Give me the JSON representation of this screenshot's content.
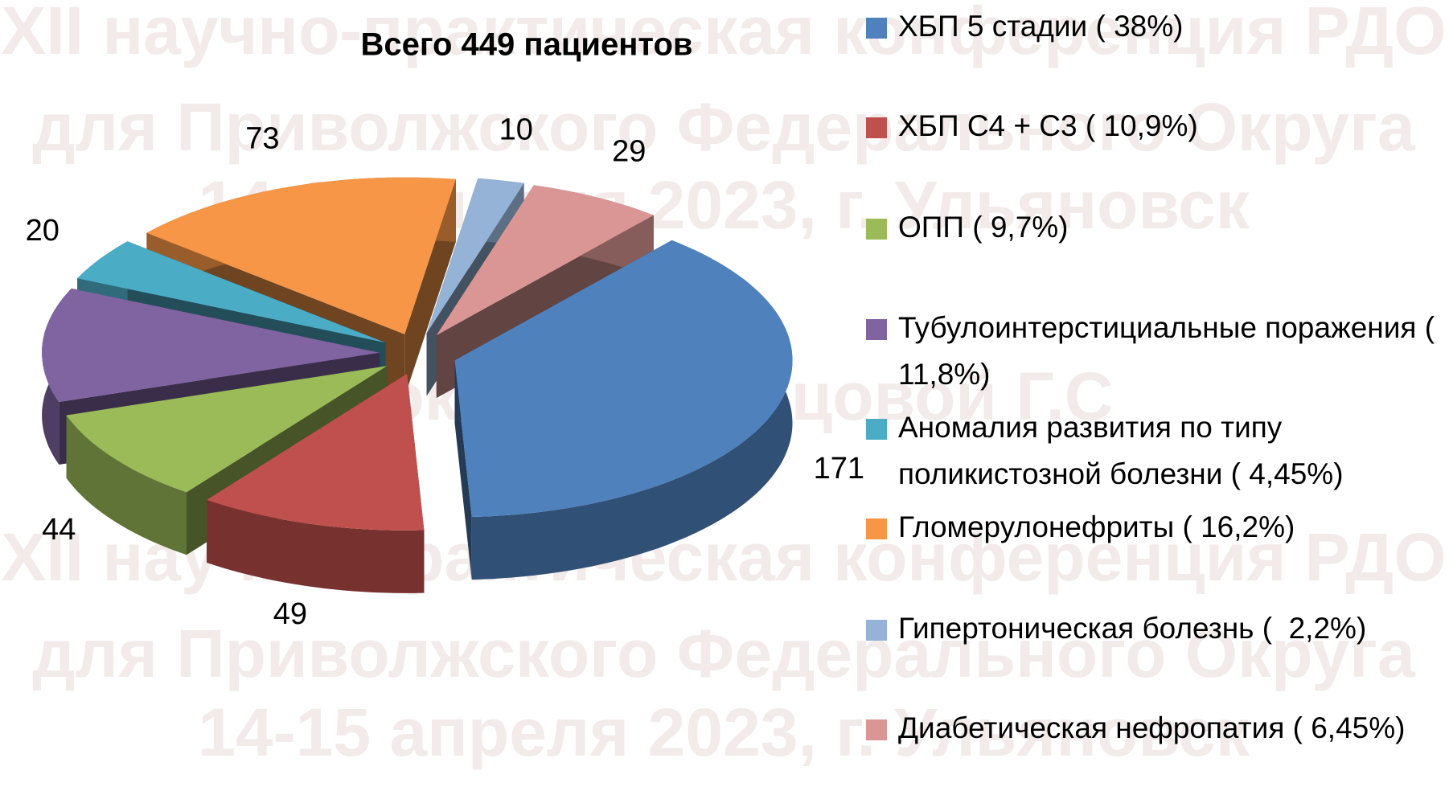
{
  "chart_data": {
    "type": "pie3d",
    "title": "Всего 449 пациентов",
    "categories": [
      "ХБП 5 стадии ( 38%)",
      "ХБП С4 + С3 ( 10,9%)",
      "ОПП ( 9,7%)",
      "Тубулоинтерстициальные поражения ( 11,8%)",
      "Аномалия развития по типу поликистозной болезни ( 4,45%)",
      "Гломерулонефриты ( 16,2%)",
      "Гипертоническая болезнь (  2,2%)",
      "Диабетическая нефропатия ( 6,45%)"
    ],
    "values": [
      171,
      49,
      44,
      53,
      20,
      73,
      10,
      29
    ],
    "colors": [
      "#4f81bd",
      "#c0504d",
      "#9bbb59",
      "#8064a2",
      "#4bacc6",
      "#f79646",
      "#95b3d7",
      "#d99694"
    ],
    "legend": "right",
    "watermark": [
      "XII научно-практическая конференция РДО",
      "для Приволжского Федерального Округа",
      "14-15 апреля 2023, г. Ульяновск",
      "Доклад Кузнецовой Г.С",
      "XII научно-практическая конференция РДО",
      "для Приволжского Федерального Округа",
      "14-15 апреля 2023, г. Ульяновск"
    ]
  }
}
